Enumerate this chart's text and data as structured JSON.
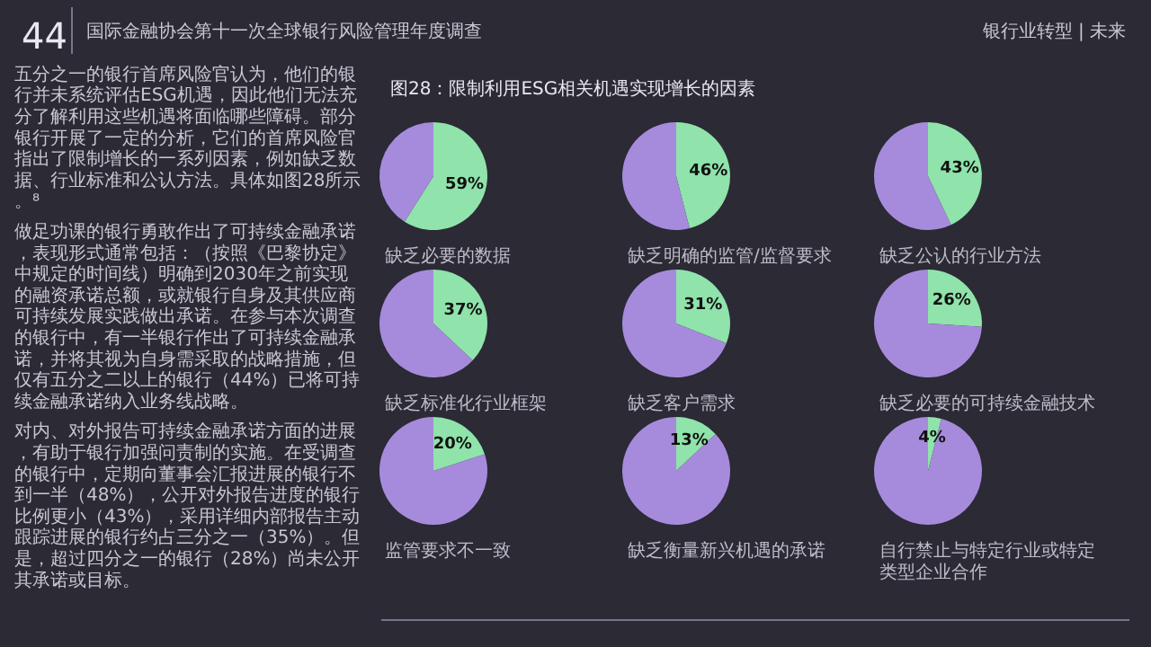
{
  "chart_data": [
    {
      "type": "other",
      "title": "图28：限制利用ESG相关机遇实现增长的因素",
      "annotations": [
        "44",
        "国际金融协会第十一次全球银行风险管理年度调查",
        "银行业转型 | 未来",
        "五分之一的银行首席风险官认为，他们的银行并未系统评估ESG机遇，因此他们无法充分了解利用这些机遇将面临哪些障碍。部分银行开展了一定的分析，它们的首席风险官指出了限制增长的一系列因素，例如缺乏数据、行业标准和公认方法。具体如图28所示。⁸",
        "做足功课的银行勇敢作出了可持续金融承诺，表现形式通常包括：（按照《巴黎协定》中规定的时间线）明确到2030年之前实现的融资承诺总额，或就银行自身及其供应商可持续发展实践做出承诺。在参与本次调查的银行中，有一半银行作出了可持续金融承诺，并将其视为自身需采取的战略措施，但仅有五分之二以上的银行（44%）已将可持续金融承诺纳入业务线战略。",
        "对内、对外报告可持续金融承诺方面的进展，有助于银行加强问责制的实施。在受调查的银行中，定期向董事会汇报进展的银行不到一半（48%），公开对外报告进度的银行比例更小（43%），采用详细内部报告主动跟踪进展的银行约占三分之一（35%）。但是，超过四分之一的银行（28%）尚未公开其承诺或目标。"
      ]
    },
    {
      "type": "pie",
      "title": "缺乏必要的数据",
      "categories": [
        null,
        null
      ],
      "values": [
        59,
        41
      ],
      "value_labels": [
        "59%",
        null
      ],
      "colors": [
        "#8fe3ab",
        "#a68bdc"
      ]
    },
    {
      "type": "pie",
      "title": "缺乏明确的监管/监督要求",
      "categories": [
        null,
        null
      ],
      "values": [
        46,
        54
      ],
      "value_labels": [
        "46%",
        null
      ],
      "colors": [
        "#8fe3ab",
        "#a68bdc"
      ]
    },
    {
      "type": "pie",
      "title": "缺乏公认的行业方法",
      "categories": [
        null,
        null
      ],
      "values": [
        43,
        57
      ],
      "value_labels": [
        "43%",
        null
      ],
      "colors": [
        "#8fe3ab",
        "#a68bdc"
      ]
    },
    {
      "type": "pie",
      "title": "缺乏标准化行业框架",
      "categories": [
        null,
        null
      ],
      "values": [
        37,
        63
      ],
      "value_labels": [
        "37%",
        null
      ],
      "colors": [
        "#8fe3ab",
        "#a68bdc"
      ]
    },
    {
      "type": "pie",
      "title": "缺乏客户需求",
      "categories": [
        null,
        null
      ],
      "values": [
        31,
        69
      ],
      "value_labels": [
        "31%",
        null
      ],
      "colors": [
        "#8fe3ab",
        "#a68bdc"
      ]
    },
    {
      "type": "pie",
      "title": "缺乏必要的可持续金融技术",
      "categories": [
        null,
        null
      ],
      "values": [
        26,
        74
      ],
      "value_labels": [
        "26%",
        null
      ],
      "colors": [
        "#8fe3ab",
        "#a68bdc"
      ]
    },
    {
      "type": "pie",
      "title": "监管要求不一致",
      "categories": [
        null,
        null
      ],
      "values": [
        20,
        80
      ],
      "value_labels": [
        "20%",
        null
      ],
      "colors": [
        "#8fe3ab",
        "#a68bdc"
      ]
    },
    {
      "type": "pie",
      "title": "缺乏衡量新兴机遇的承诺",
      "categories": [
        null,
        null
      ],
      "values": [
        13,
        87
      ],
      "value_labels": [
        "13%",
        null
      ],
      "colors": [
        "#8fe3ab",
        "#a68bdc"
      ]
    },
    {
      "type": "pie",
      "title": "自行禁止与特定行业或特定类型企业合作",
      "categories": [
        null,
        null
      ],
      "values": [
        4,
        96
      ],
      "value_labels": [
        "4%",
        null
      ],
      "colors": [
        "#8fe3ab",
        "#a68bdc"
      ]
    }
  ]
}
